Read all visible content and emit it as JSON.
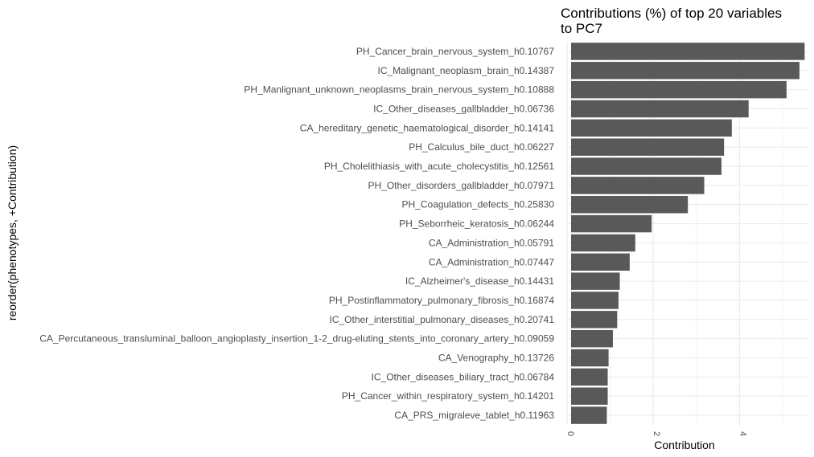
{
  "chart_data": {
    "type": "bar",
    "orientation": "horizontal",
    "title_lines": [
      "Contributions (%) of top 20 variables",
      "to PC7"
    ],
    "xlabel": "Contribution",
    "ylabel": "reorder(phenotypes, +Contribution)",
    "xlim": [
      0,
      5.6
    ],
    "x_ticks": [
      0,
      2,
      4
    ],
    "x_tick_labels": [
      "0",
      "2",
      "4"
    ],
    "grid": true,
    "bar_color": "#595959",
    "grid_color": "#ebebeb",
    "categories": [
      "PH_Cancer_brain_nervous_system_h0.10767",
      "IC_Malignant_neoplasm_brain_h0.14387",
      "PH_Manlignant_unknown_neoplasms_brain_nervous_system_h0.10888",
      "IC_Other_diseases_gallbladder_h0.06736",
      "CA_hereditary_genetic_haematological_disorder_h0.14141",
      "PH_Calculus_bile_duct_h0.06227",
      "PH_Cholelithiasis_with_acute_cholecystitis_h0.12561",
      "PH_Other_disorders_gallbladder_h0.07971",
      "PH_Coagulation_defects_h0.25830",
      "PH_Seborrheic_keratosis_h0.06244",
      "CA_Administration_h0.05791",
      "CA_Administration_h0.07447",
      "IC_Alzheimer's_disease_h0.14431",
      "PH_Postinflammatory_pulmonary_fibrosis_h0.16874",
      "IC_Other_interstitial_pulmonary_diseases_h0.20741",
      "CA_Percutaneous_transluminal_balloon_angioplasty_insertion_1-2_drug-eluting_stents_into_coronary_artery_h0.09059",
      "CA_Venography_h0.13726",
      "IC_Other_diseases_biliary_tract_h0.06784",
      "PH_Cancer_within_respiratory_system_h0.14201",
      "CA_PRS_migraleve_tablet_h0.11963"
    ],
    "values": [
      5.42,
      5.3,
      5.0,
      4.12,
      3.73,
      3.55,
      3.49,
      3.09,
      2.71,
      1.87,
      1.49,
      1.36,
      1.13,
      1.1,
      1.07,
      0.97,
      0.87,
      0.85,
      0.85,
      0.83
    ]
  }
}
